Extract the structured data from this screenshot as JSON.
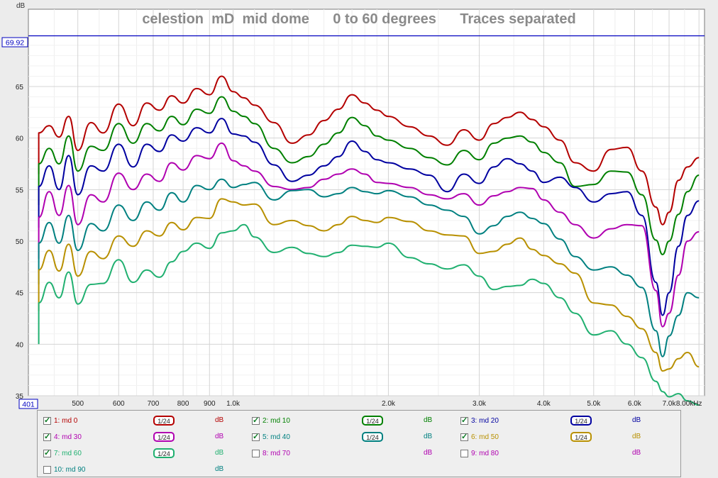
{
  "y_unit": "dB",
  "marker_level": "69.92",
  "x_marker": "401",
  "chart_data": {
    "type": "line",
    "title": "celestion  mD  mid dome      0 to 60 degrees      Traces separated",
    "xlabel": "kHz",
    "ylabel": "dB",
    "xscale": "log",
    "xlim": [
      401,
      8200
    ],
    "ylim": [
      35,
      72.5
    ],
    "grid": true,
    "x_ticks": [
      500,
      600,
      700,
      800,
      900,
      1000,
      2000,
      3000,
      4000,
      5000,
      6000,
      7000,
      8000
    ],
    "x_tick_labels": [
      "500",
      "600",
      "700",
      "800",
      "900",
      "1.0k",
      "2.0k",
      "3.0k",
      "4.0k",
      "5.0k",
      "6.0k",
      "7.0k",
      "8.00kHz"
    ],
    "y_ticks": [
      35,
      40,
      45,
      50,
      55,
      60,
      65
    ],
    "y_tick_labels": [
      "35",
      "40",
      "45",
      "50",
      "55",
      "60",
      "65"
    ],
    "reference_line": 69.92,
    "x": [
      420,
      440,
      460,
      480,
      500,
      530,
      560,
      600,
      640,
      680,
      720,
      760,
      800,
      850,
      900,
      950,
      1000,
      1050,
      1100,
      1200,
      1300,
      1400,
      1500,
      1600,
      1700,
      1800,
      1900,
      2000,
      2200,
      2400,
      2600,
      2800,
      3000,
      3200,
      3400,
      3600,
      3800,
      4000,
      4300,
      4600,
      5000,
      5400,
      5800,
      6200,
      6600,
      6800,
      7000,
      7300,
      7600,
      8000
    ],
    "series": [
      {
        "name": "1: md 0",
        "color": "#b40000",
        "values": [
          60.5,
          61.2,
          60.1,
          62.1,
          58.8,
          61.5,
          60.5,
          63.3,
          61.2,
          63.4,
          62.7,
          64.1,
          63.4,
          64.8,
          64.2,
          66.0,
          64.5,
          63.9,
          63.2,
          61.5,
          59.5,
          60.3,
          61.7,
          62.8,
          64.2,
          63.4,
          62.7,
          62.1,
          61.1,
          60.2,
          59.3,
          60.8,
          59.8,
          61.4,
          62.0,
          62.5,
          61.8,
          61.1,
          59.8,
          57.6,
          56.8,
          58.9,
          59.1,
          56.8,
          53.3,
          51.6,
          52.8,
          55.9,
          57.2,
          58.1
        ]
      },
      {
        "name": "2: md 10",
        "color": "#008000",
        "values": [
          57.5,
          59.0,
          57.5,
          60.2,
          56.8,
          59.2,
          58.8,
          61.4,
          59.5,
          61.4,
          60.7,
          62.1,
          61.3,
          62.8,
          62.4,
          64.0,
          62.6,
          62.1,
          61.4,
          59.0,
          57.6,
          58.2,
          59.4,
          60.5,
          62.0,
          61.2,
          60.2,
          59.8,
          59.0,
          58.1,
          57.4,
          58.8,
          57.9,
          59.5,
          60.0,
          60.2,
          59.6,
          58.6,
          57.6,
          55.3,
          55.5,
          56.8,
          56.7,
          54.5,
          50.1,
          48.7,
          50.0,
          52.6,
          54.8,
          56.4
        ]
      },
      {
        "name": "3: md 20",
        "color": "#0000a0",
        "values": [
          55.3,
          57.3,
          55.0,
          58.3,
          54.5,
          57.3,
          56.8,
          59.4,
          57.2,
          59.4,
          58.7,
          60.3,
          59.7,
          61.0,
          60.5,
          61.9,
          60.4,
          60.2,
          59.6,
          57.4,
          55.8,
          56.4,
          57.3,
          58.2,
          59.7,
          58.7,
          57.9,
          57.6,
          57.0,
          56.4,
          54.8,
          56.5,
          55.6,
          57.2,
          58.0,
          57.5,
          56.8,
          55.7,
          56.2,
          55.2,
          53.8,
          54.6,
          54.8,
          52.5,
          46.0,
          42.8,
          45.0,
          49.5,
          52.5,
          53.9
        ]
      },
      {
        "name": "4: md 30",
        "color": "#b000b0",
        "values": [
          52.3,
          54.8,
          52.5,
          55.4,
          51.6,
          54.5,
          53.8,
          56.6,
          55.0,
          56.5,
          55.8,
          57.6,
          56.9,
          58.3,
          58.0,
          59.5,
          57.8,
          57.3,
          56.8,
          55.3,
          55.0,
          55.2,
          56.0,
          56.5,
          57.0,
          56.5,
          55.7,
          55.6,
          55.2,
          54.5,
          54.1,
          54.6,
          53.5,
          54.4,
          54.8,
          55.2,
          55.1,
          54.0,
          52.8,
          51.6,
          50.3,
          51.2,
          51.6,
          51.5,
          45.2,
          41.7,
          43.0,
          46.7,
          50.0,
          50.9
        ]
      },
      {
        "name": "5: md 40",
        "color": "#008080",
        "values": [
          49.8,
          51.8,
          49.8,
          52.5,
          49.1,
          51.7,
          51.0,
          53.5,
          52.0,
          53.8,
          53.0,
          54.7,
          53.8,
          55.4,
          55.0,
          56.0,
          55.2,
          55.5,
          55.7,
          54.0,
          54.9,
          55.0,
          54.3,
          54.6,
          55.2,
          54.8,
          54.6,
          54.9,
          54.3,
          53.5,
          53.0,
          52.4,
          50.7,
          51.5,
          52.4,
          52.8,
          52.2,
          51.7,
          50.2,
          48.5,
          47.2,
          47.5,
          46.7,
          45.5,
          41.3,
          38.8,
          40.8,
          42.8,
          45.0,
          44.5
        ]
      },
      {
        "name": "6: md 50",
        "color": "#b89000",
        "values": [
          47.2,
          49.1,
          47.1,
          49.7,
          46.6,
          49.0,
          48.3,
          50.5,
          49.5,
          51.0,
          50.5,
          51.8,
          51.1,
          52.3,
          52.2,
          54.1,
          53.8,
          53.5,
          53.6,
          51.6,
          52.0,
          51.5,
          51.0,
          51.6,
          52.4,
          52.0,
          51.8,
          52.3,
          51.9,
          51.0,
          50.6,
          50.5,
          48.8,
          49.0,
          49.7,
          50.3,
          49.2,
          48.6,
          47.8,
          46.9,
          44.0,
          43.8,
          42.7,
          41.5,
          39.2,
          37.4,
          37.6,
          38.6,
          39.2,
          37.8
        ]
      },
      {
        "name": "7: md 60",
        "color": "#20b070",
        "values": [
          44.0,
          46.0,
          44.5,
          47.0,
          43.9,
          45.8,
          45.9,
          48.2,
          46.0,
          47.2,
          46.5,
          48.0,
          49.0,
          49.8,
          49.3,
          50.8,
          51.0,
          51.6,
          50.4,
          48.9,
          49.4,
          48.8,
          48.5,
          48.9,
          49.6,
          49.5,
          49.4,
          49.8,
          48.4,
          47.8,
          47.3,
          47.7,
          46.6,
          45.3,
          45.6,
          45.7,
          46.3,
          45.9,
          44.5,
          43.0,
          40.9,
          41.3,
          40.0,
          38.7,
          36.4,
          35.4,
          34.9,
          35.2,
          34.5,
          34.1
        ]
      }
    ]
  },
  "legend": [
    {
      "label": "1: md 0",
      "checked": true,
      "color": "#b40000",
      "smoothing": "1/24",
      "unit": "dB"
    },
    {
      "label": "2: md 10",
      "checked": true,
      "color": "#008000",
      "smoothing": "1/24",
      "unit": "dB"
    },
    {
      "label": "3: md 20",
      "checked": true,
      "color": "#0000a0",
      "smoothing": "1/24",
      "unit": "dB"
    },
    {
      "label": "4: md 30",
      "checked": true,
      "color": "#b000b0",
      "smoothing": "1/24",
      "unit": "dB"
    },
    {
      "label": "5: md 40",
      "checked": true,
      "color": "#008080",
      "smoothing": "1/24",
      "unit": "dB"
    },
    {
      "label": "6: md 50",
      "checked": true,
      "color": "#b89000",
      "smoothing": "1/24",
      "unit": "dB"
    },
    {
      "label": "7: md 60",
      "checked": true,
      "color": "#20b070",
      "smoothing": "1/24",
      "unit": "dB"
    },
    {
      "label": "8: md 70",
      "checked": false,
      "color": "#b000b0",
      "smoothing": "",
      "unit": "dB"
    },
    {
      "label": "9: md 80",
      "checked": false,
      "color": "#b000b0",
      "smoothing": "",
      "unit": "dB"
    },
    {
      "label": "10: md 90",
      "checked": false,
      "color": "#008080",
      "smoothing": "",
      "unit": "dB"
    }
  ]
}
